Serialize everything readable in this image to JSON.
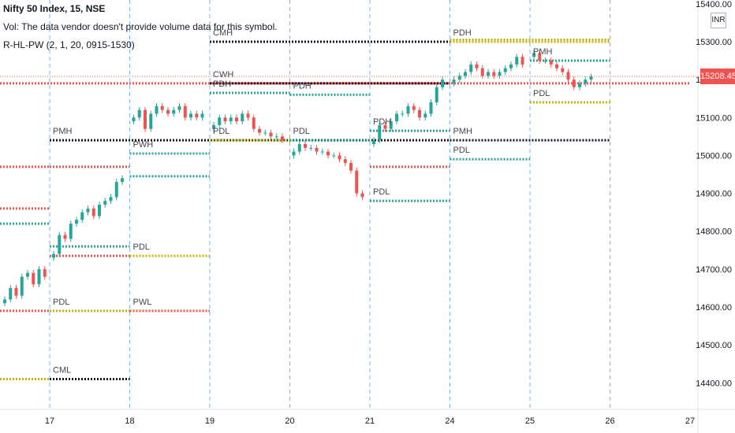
{
  "legend": {
    "symbol": "Nifty 50 Index, 15, NSE",
    "volume_note": "Vol: The data vendor doesn't provide volume data for this symbol.",
    "indicator": "R-HL-PW (2, 1, 20, 0915-1530)"
  },
  "price_axis": {
    "currency": "INR",
    "last_price": "15208.45",
    "last_price_color": "#ef5350"
  },
  "colors": {
    "up": "#26a69a",
    "down": "#ef5350",
    "level_red": "#ef5350",
    "level_green": "#26a69a",
    "level_yellow": "#c7b300",
    "level_black": "#131722",
    "session_line": "#5b9cf6"
  },
  "chart_data": {
    "type": "candlestick",
    "x_ticks": [
      "17",
      "18",
      "19",
      "20",
      "21",
      "24",
      "25",
      "26",
      "27"
    ],
    "y_ticks": [
      "15400.00",
      "15300.00",
      "15200.00",
      "15100.00",
      "15000.00",
      "14900.00",
      "14800.00",
      "14700.00",
      "14600.00",
      "14500.00",
      "14400.00"
    ],
    "ylim": [
      14330,
      15410
    ],
    "y_tick_values": [
      15400,
      15300,
      15200,
      15100,
      15000,
      14900,
      14800,
      14700,
      14600,
      14500,
      14400
    ],
    "sessions": [
      {
        "day": "16",
        "close_path": [
          14620,
          14650,
          14630,
          14680,
          14690,
          14660,
          14700,
          14680
        ]
      },
      {
        "day": "17",
        "close_path": [
          14740,
          14790,
          14780,
          14820,
          14830,
          14850,
          14860,
          14840,
          14870,
          14880,
          14890,
          14930,
          14940
        ]
      },
      {
        "day": "18",
        "close_path": [
          15100,
          15120,
          15070,
          15110,
          15130,
          15120,
          15110,
          15120,
          15130,
          15100,
          15110,
          15100,
          15110
        ]
      },
      {
        "day": "19",
        "close_path": [
          15080,
          15100,
          15090,
          15100,
          15090,
          15110,
          15100,
          15070,
          15060,
          15060,
          15050,
          15050,
          15040
        ]
      },
      {
        "day": "20",
        "close_path": [
          15010,
          15030,
          15020,
          15020,
          15010,
          15010,
          15000,
          15000,
          14990,
          14980,
          14960,
          14900,
          14890
        ]
      },
      {
        "day": "21",
        "close_path": [
          15040,
          15080,
          15070,
          15090,
          15110,
          15110,
          15130,
          15120,
          15100,
          15110,
          15140,
          15180,
          15200
        ]
      },
      {
        "day": "24",
        "close_path": [
          15200,
          15210,
          15220,
          15240,
          15230,
          15210,
          15220,
          15210,
          15220,
          15230,
          15240,
          15260,
          15240
        ]
      },
      {
        "day": "25",
        "close_path": [
          15270,
          15250,
          15250,
          15240,
          15230,
          15220,
          15200,
          15180,
          15190,
          15200,
          15208
        ]
      }
    ],
    "levels": [
      {
        "label": "PMH",
        "value": 15040,
        "color": "black",
        "day_from": 0,
        "day_to": 5
      },
      {
        "label": "PMH",
        "value": 15040,
        "color": "black",
        "day_from": 5,
        "day_to": 7
      },
      {
        "label": "CMH",
        "value": 15300,
        "color": "black",
        "day_from": 2,
        "day_to": 5
      },
      {
        "label": "CML",
        "value": 14410,
        "color": "black",
        "day_from": 0,
        "day_to": 1
      },
      {
        "label": "CWH",
        "value": 15190,
        "color": "black",
        "day_from": 2,
        "day_to": 5
      },
      {
        "label": "PWH",
        "value": 15005,
        "color": "green",
        "day_from": 1,
        "day_to": 2
      },
      {
        "label": "PWL",
        "value": 14590,
        "color": "yellow",
        "day_from": 1,
        "day_to": 2
      },
      {
        "label": "PDH",
        "value": 15165,
        "color": "green",
        "day_from": 2,
        "day_to": 3
      },
      {
        "label": "PDL",
        "value": 14735,
        "color": "yellow",
        "day_from": 1,
        "day_to": 2
      },
      {
        "label": "PDL",
        "value": 14590,
        "color": "yellow",
        "day_from": 0,
        "day_to": 1
      },
      {
        "label": "PDH",
        "value": 15160,
        "color": "green",
        "day_from": 3,
        "day_to": 4
      },
      {
        "label": "PDL",
        "value": 15040,
        "color": "yellow",
        "day_from": 2,
        "day_to": 3
      },
      {
        "label": "PDL",
        "value": 15040,
        "color": "green",
        "day_from": 3,
        "day_to": 4
      },
      {
        "label": "PDH",
        "value": 15065,
        "color": "green",
        "day_from": 4,
        "day_to": 5
      },
      {
        "label": "PDL",
        "value": 14880,
        "color": "green",
        "day_from": 4,
        "day_to": 5
      },
      {
        "label": "PDH",
        "value": 15300,
        "color": "yellow",
        "day_from": 5,
        "day_to": 7
      },
      {
        "label": "PDL",
        "value": 14990,
        "color": "green",
        "day_from": 5,
        "day_to": 6
      },
      {
        "label": "PMH",
        "value": 15250,
        "color": "green",
        "day_from": 6,
        "day_to": 7
      },
      {
        "label": "PDL",
        "value": 15140,
        "color": "yellow",
        "day_from": 6,
        "day_to": 7
      },
      {
        "label": "",
        "value": 15190,
        "color": "red",
        "day_from": -1,
        "day_to": 8
      },
      {
        "label": "",
        "value": 14970,
        "color": "red",
        "day_from": -1,
        "day_to": 0
      },
      {
        "label": "",
        "value": 14860,
        "color": "red",
        "day_from": -1,
        "day_to": 0
      },
      {
        "label": "",
        "value": 14820,
        "color": "green",
        "day_from": -1,
        "day_to": 0
      },
      {
        "label": "",
        "value": 14590,
        "color": "red",
        "day_from": -1,
        "day_to": 0
      },
      {
        "label": "",
        "value": 14410,
        "color": "yellow",
        "day_from": -1,
        "day_to": 0
      },
      {
        "label": "",
        "value": 14945,
        "color": "green",
        "day_from": 1,
        "day_to": 2
      },
      {
        "label": "",
        "value": 14970,
        "color": "red",
        "day_from": 0,
        "day_to": 1
      },
      {
        "label": "",
        "value": 14735,
        "color": "red",
        "day_from": 0,
        "day_to": 1
      },
      {
        "label": "",
        "value": 14760,
        "color": "green",
        "day_from": 0,
        "day_to": 1
      },
      {
        "label": "",
        "value": 14590,
        "color": "red",
        "day_from": 1,
        "day_to": 2
      },
      {
        "label": "",
        "value": 14970,
        "color": "red",
        "day_from": 4,
        "day_to": 5
      },
      {
        "label": "",
        "value": 15305,
        "color": "yellow",
        "day_from": 5,
        "day_to": 7
      }
    ]
  }
}
